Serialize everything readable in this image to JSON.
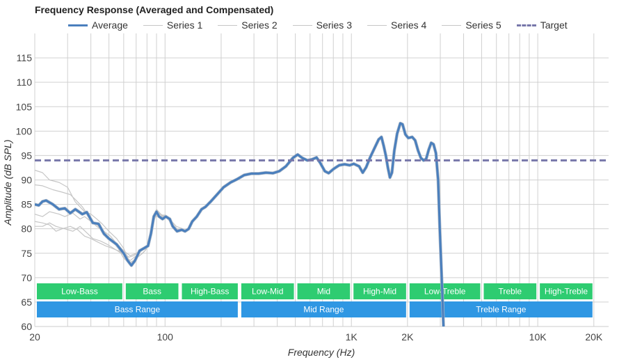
{
  "chart_data": {
    "type": "line",
    "title": "Frequency Response (Averaged and Compensated)",
    "xlabel": "Frequency (Hz)",
    "ylabel": "Amplitude (dB SPL)",
    "x_scale": "log",
    "xlim": [
      20,
      24000
    ],
    "ylim": [
      60,
      120
    ],
    "x_ticks": [
      {
        "value": 20,
        "label": "20"
      },
      {
        "value": 100,
        "label": "100"
      },
      {
        "value": 1000,
        "label": "1K"
      },
      {
        "value": 2000,
        "label": "2K"
      },
      {
        "value": 10000,
        "label": "10K"
      },
      {
        "value": 20000,
        "label": "20K"
      }
    ],
    "y_ticks": [
      60,
      65,
      70,
      75,
      80,
      85,
      90,
      95,
      100,
      105,
      110,
      115
    ],
    "grid": true,
    "legend_position": "top",
    "target": {
      "name": "Target",
      "value": 94,
      "color": "#7777aa"
    },
    "series": [
      {
        "name": "Average",
        "color": "#4a7fbd",
        "width": 3,
        "points": [
          [
            20,
            85
          ],
          [
            21,
            84.8
          ],
          [
            22,
            85.6
          ],
          [
            23,
            85.8
          ],
          [
            25,
            85
          ],
          [
            27,
            84
          ],
          [
            29,
            84.2
          ],
          [
            31,
            83.2
          ],
          [
            33,
            84
          ],
          [
            36,
            83
          ],
          [
            38,
            83.4
          ],
          [
            41,
            81.2
          ],
          [
            44,
            81
          ],
          [
            47,
            79
          ],
          [
            50,
            78
          ],
          [
            55,
            76.8
          ],
          [
            60,
            75
          ],
          [
            63,
            73.5
          ],
          [
            66,
            72.5
          ],
          [
            69,
            73.5
          ],
          [
            73,
            75.5
          ],
          [
            77,
            76
          ],
          [
            81,
            76.5
          ],
          [
            84,
            79
          ],
          [
            87,
            82.5
          ],
          [
            90,
            83.5
          ],
          [
            93,
            82.5
          ],
          [
            97,
            82
          ],
          [
            101,
            82.5
          ],
          [
            106,
            82
          ],
          [
            110,
            80.5
          ],
          [
            116,
            79.5
          ],
          [
            123,
            79.8
          ],
          [
            128,
            79.5
          ],
          [
            134,
            80
          ],
          [
            140,
            81.5
          ],
          [
            148,
            82.5
          ],
          [
            157,
            84
          ],
          [
            165,
            84.5
          ],
          [
            175,
            85.5
          ],
          [
            190,
            87
          ],
          [
            206,
            88.5
          ],
          [
            225,
            89.5
          ],
          [
            245,
            90.2
          ],
          [
            266,
            91
          ],
          [
            290,
            91.3
          ],
          [
            318,
            91.3
          ],
          [
            348,
            91.5
          ],
          [
            380,
            91.4
          ],
          [
            410,
            91.8
          ],
          [
            445,
            92.8
          ],
          [
            485,
            94.5
          ],
          [
            515,
            95.2
          ],
          [
            545,
            94.5
          ],
          [
            580,
            94
          ],
          [
            615,
            94.2
          ],
          [
            650,
            94.6
          ],
          [
            680,
            93.5
          ],
          [
            720,
            91.8
          ],
          [
            755,
            91.4
          ],
          [
            805,
            92.3
          ],
          [
            860,
            93
          ],
          [
            920,
            93.2
          ],
          [
            980,
            93
          ],
          [
            1030,
            93.3
          ],
          [
            1100,
            92.8
          ],
          [
            1150,
            91.5
          ],
          [
            1200,
            92.6
          ],
          [
            1260,
            94.6
          ],
          [
            1330,
            96.5
          ],
          [
            1400,
            98.3
          ],
          [
            1450,
            98.8
          ],
          [
            1490,
            97
          ],
          [
            1530,
            95
          ],
          [
            1570,
            92.5
          ],
          [
            1610,
            90.5
          ],
          [
            1650,
            91.5
          ],
          [
            1700,
            96
          ],
          [
            1760,
            99.5
          ],
          [
            1830,
            101.6
          ],
          [
            1880,
            101.4
          ],
          [
            1950,
            99.3
          ],
          [
            2020,
            98.6
          ],
          [
            2120,
            98.8
          ],
          [
            2200,
            98.1
          ],
          [
            2280,
            96
          ],
          [
            2360,
            94.5
          ],
          [
            2440,
            94
          ],
          [
            2520,
            94.3
          ],
          [
            2600,
            96.2
          ],
          [
            2680,
            97.6
          ],
          [
            2760,
            97.3
          ],
          [
            2840,
            95.5
          ],
          [
            2920,
            90
          ],
          [
            2980,
            80
          ],
          [
            3050,
            70
          ],
          [
            3120,
            60
          ]
        ]
      },
      {
        "name": "Series 1",
        "color": "#c6c6c6",
        "width": 1.2,
        "points": [
          [
            20,
            92
          ],
          [
            22,
            91.5
          ],
          [
            24,
            90
          ],
          [
            27,
            89.5
          ],
          [
            30,
            88.5
          ],
          [
            33,
            85.5
          ],
          [
            37,
            83.5
          ],
          [
            40,
            83
          ],
          [
            43,
            82
          ],
          [
            46,
            81
          ],
          [
            50,
            79.5
          ],
          [
            55,
            78
          ],
          [
            60,
            76
          ],
          [
            65,
            73
          ],
          [
            70,
            74
          ],
          [
            76,
            75
          ],
          [
            80,
            76
          ],
          [
            84,
            79
          ],
          [
            87,
            82.5
          ],
          [
            90,
            83.8
          ],
          [
            95,
            82.8
          ],
          [
            101,
            82.8
          ],
          [
            108,
            81.5
          ],
          [
            115,
            79.8
          ],
          [
            125,
            80
          ]
        ]
      },
      {
        "name": "Series 2",
        "color": "#c6c6c6",
        "width": 1.2,
        "points": [
          [
            20,
            89
          ],
          [
            22,
            88.8
          ],
          [
            25,
            88
          ],
          [
            28,
            87.5
          ],
          [
            31,
            87
          ],
          [
            33,
            86
          ],
          [
            36,
            84.5
          ],
          [
            40,
            82
          ],
          [
            44,
            80.5
          ],
          [
            48,
            79
          ],
          [
            52,
            77.5
          ],
          [
            56,
            76
          ],
          [
            60,
            74
          ],
          [
            64,
            73
          ],
          [
            68,
            73.5
          ],
          [
            73,
            74.5
          ],
          [
            78,
            75.5
          ],
          [
            82,
            77
          ],
          [
            86,
            82
          ],
          [
            90,
            84
          ],
          [
            95,
            83
          ],
          [
            100,
            82.5
          ],
          [
            107,
            81.8
          ],
          [
            115,
            80.5
          ],
          [
            125,
            80
          ]
        ]
      },
      {
        "name": "Series 3",
        "color": "#c6c6c6",
        "width": 1.2,
        "points": [
          [
            20,
            83
          ],
          [
            22,
            82.5
          ],
          [
            24,
            83.5
          ],
          [
            27,
            83
          ],
          [
            29,
            82.5
          ],
          [
            32,
            83.2
          ],
          [
            35,
            82
          ],
          [
            37,
            82.5
          ],
          [
            40,
            81.5
          ],
          [
            43,
            80.5
          ],
          [
            47,
            79.5
          ],
          [
            51,
            78.5
          ],
          [
            55,
            77
          ],
          [
            60,
            75.5
          ],
          [
            65,
            74.5
          ],
          [
            70,
            75
          ],
          [
            76,
            76
          ],
          [
            81,
            76.5
          ],
          [
            85,
            80
          ],
          [
            89,
            83
          ],
          [
            94,
            82.5
          ],
          [
            100,
            82.7
          ],
          [
            107,
            81.5
          ],
          [
            116,
            79.8
          ],
          [
            125,
            80
          ]
        ]
      },
      {
        "name": "Series 4",
        "color": "#c6c6c6",
        "width": 1.2,
        "points": [
          [
            20,
            81.5
          ],
          [
            22,
            81.2
          ],
          [
            24,
            80.8
          ],
          [
            26,
            79.5
          ],
          [
            28,
            80
          ],
          [
            31,
            80.5
          ],
          [
            34,
            79.8
          ],
          [
            37,
            78.5
          ],
          [
            40,
            78
          ],
          [
            44,
            77.2
          ],
          [
            48,
            76.5
          ],
          [
            52,
            76
          ],
          [
            56,
            75.5
          ],
          [
            60,
            75
          ],
          [
            64,
            74.2
          ],
          [
            68,
            74.5
          ],
          [
            73,
            75.5
          ],
          [
            78,
            76.2
          ],
          [
            82,
            77
          ],
          [
            86,
            81
          ],
          [
            90,
            83
          ],
          [
            95,
            82.5
          ],
          [
            100,
            82.5
          ],
          [
            107,
            81.5
          ],
          [
            116,
            80
          ],
          [
            125,
            80
          ]
        ]
      },
      {
        "name": "Series 5",
        "color": "#c6c6c6",
        "width": 1.2,
        "points": [
          [
            20,
            80.5
          ],
          [
            22,
            80.5
          ],
          [
            24,
            81.2
          ],
          [
            26,
            80.5
          ],
          [
            29,
            80
          ],
          [
            32,
            79.5
          ],
          [
            35,
            80.5
          ],
          [
            38,
            79.2
          ],
          [
            41,
            78
          ],
          [
            45,
            77.5
          ],
          [
            49,
            76.8
          ],
          [
            53,
            76
          ],
          [
            57,
            75.2
          ],
          [
            61,
            74.5
          ],
          [
            65,
            73.5
          ],
          [
            70,
            74.5
          ],
          [
            75,
            75.5
          ],
          [
            80,
            76.5
          ],
          [
            84,
            78.5
          ],
          [
            88,
            82.5
          ],
          [
            93,
            82.5
          ],
          [
            99,
            82.8
          ],
          [
            106,
            81.5
          ],
          [
            115,
            80
          ],
          [
            125,
            80
          ]
        ]
      }
    ],
    "bands_top": [
      {
        "label": "Low-Bass",
        "from": 20,
        "to": 60,
        "color": "#2ecc71"
      },
      {
        "label": "Bass",
        "from": 60,
        "to": 120,
        "color": "#2ecc71"
      },
      {
        "label": "High-Bass",
        "from": 120,
        "to": 250,
        "color": "#2ecc71"
      },
      {
        "label": "Low-Mid",
        "from": 250,
        "to": 500,
        "color": "#2ecc71"
      },
      {
        "label": "Mid",
        "from": 500,
        "to": 1000,
        "color": "#2ecc71"
      },
      {
        "label": "High-Mid",
        "from": 1000,
        "to": 2000,
        "color": "#2ecc71"
      },
      {
        "label": "Low-Treble",
        "from": 2000,
        "to": 5000,
        "color": "#2ecc71"
      },
      {
        "label": "Treble",
        "from": 5000,
        "to": 10000,
        "color": "#2ecc71"
      },
      {
        "label": "High-Treble",
        "from": 10000,
        "to": 20000,
        "color": "#2ecc71"
      }
    ],
    "bands_bottom": [
      {
        "label": "Bass Range",
        "from": 20,
        "to": 250,
        "color": "#2f97e3"
      },
      {
        "label": "Mid Range",
        "from": 250,
        "to": 2000,
        "color": "#2f97e3"
      },
      {
        "label": "Treble Range",
        "from": 2000,
        "to": 20000,
        "color": "#2f97e3"
      }
    ]
  }
}
